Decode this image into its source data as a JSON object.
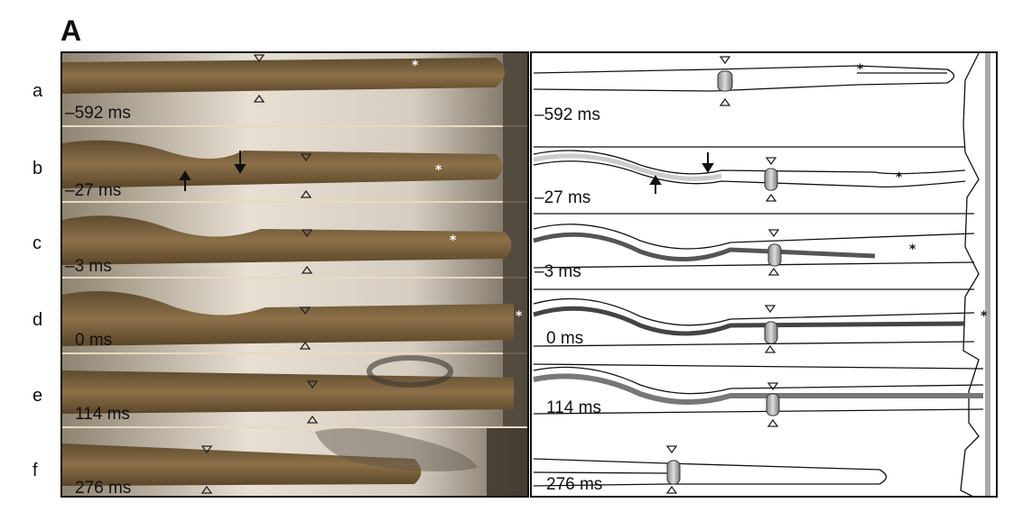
{
  "figure": {
    "panel_label": "A",
    "rows": [
      {
        "label": "a",
        "time": "–592 ms"
      },
      {
        "label": "b",
        "time": "–27 ms"
      },
      {
        "label": "c",
        "time": "–3 ms"
      },
      {
        "label": "d",
        "time": "0 ms"
      },
      {
        "label": "e",
        "time": "114 ms"
      },
      {
        "label": "f",
        "time": "276 ms"
      }
    ]
  }
}
